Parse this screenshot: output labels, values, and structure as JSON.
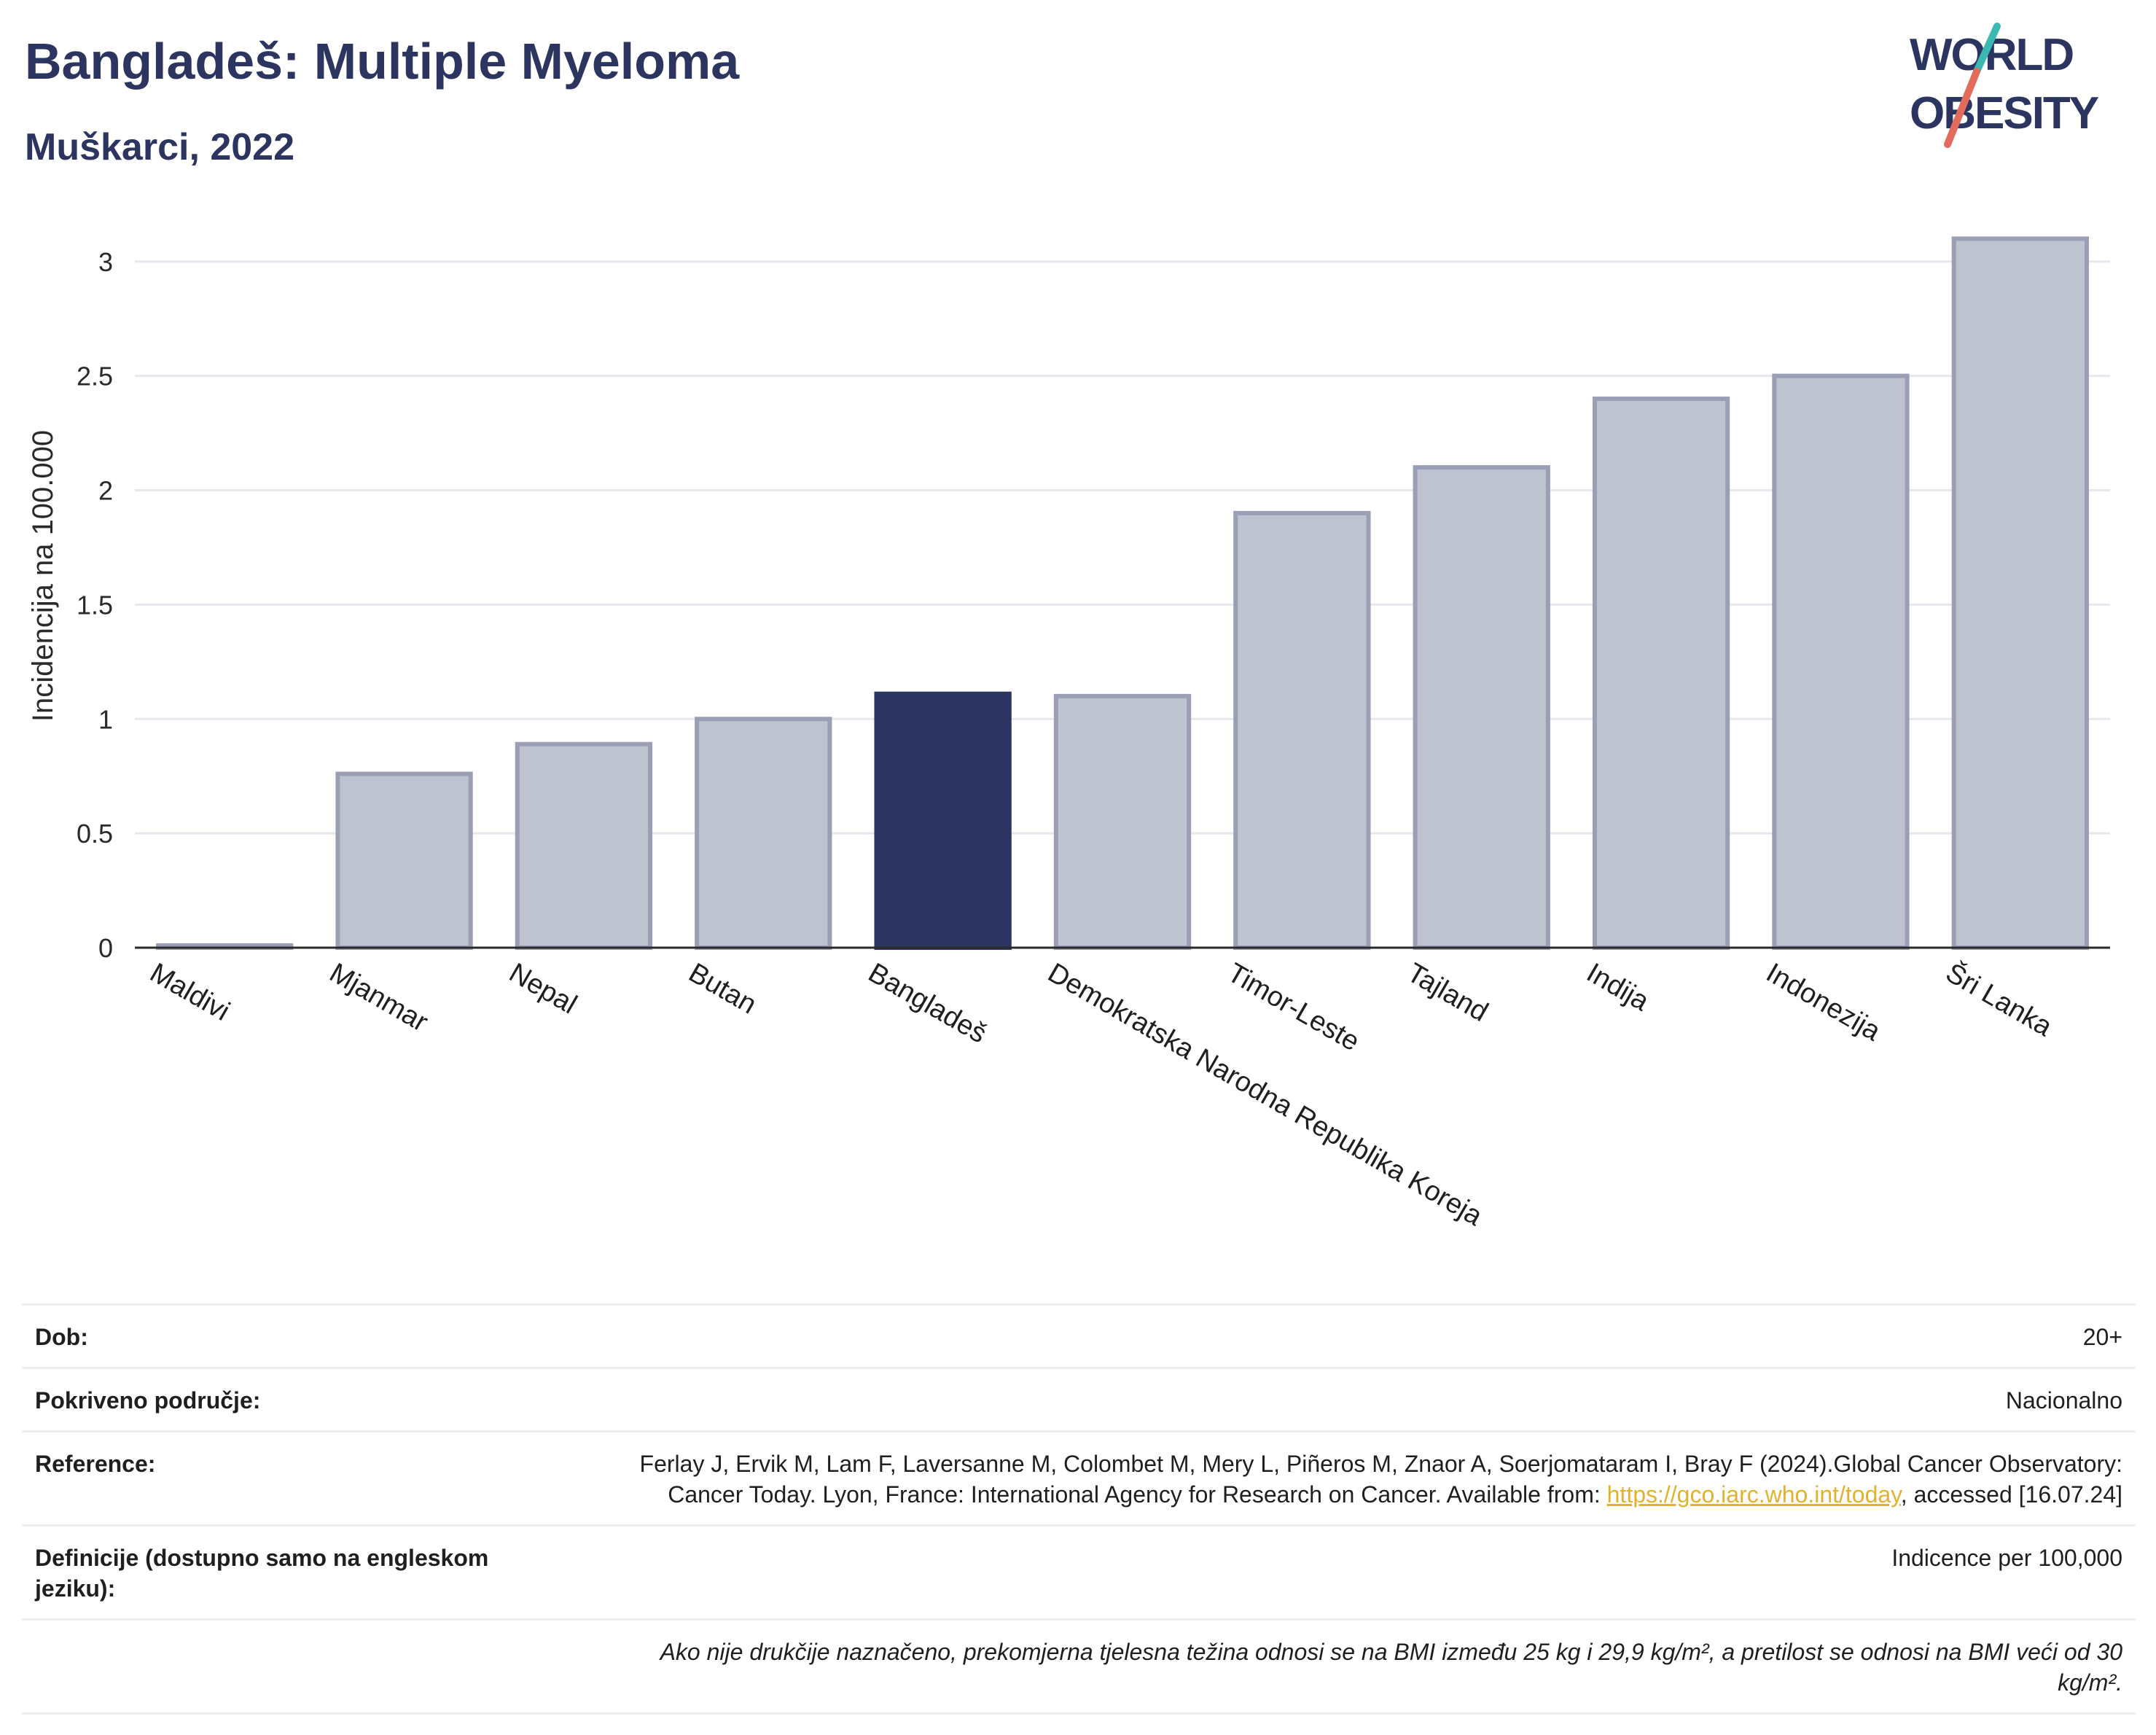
{
  "header": {
    "title": "Bangladeš: Multiple Myeloma",
    "subtitle": "Muškarci, 2022"
  },
  "logo": {
    "line1": "WORLD",
    "line2": "OBESITY",
    "colors": {
      "text": "#2b3560",
      "accent_teal": "#3bb8b1",
      "accent_coral": "#e36b5b"
    }
  },
  "chart_data": {
    "type": "bar",
    "title": "Bangladeš: Multiple Myeloma",
    "subtitle": "Muškarci, 2022",
    "ylabel": "Incidencija na 100.000",
    "xlabel": "",
    "ylim": [
      0,
      3.2
    ],
    "yticks": [
      0,
      0.5,
      1,
      1.5,
      2,
      2.5,
      3
    ],
    "ytick_labels": [
      "0",
      "0.5",
      "1",
      "1.5",
      "2",
      "2.5",
      "3"
    ],
    "grid": true,
    "categories": [
      "Maldivi",
      "Mjanmar",
      "Nepal",
      "Butan",
      "Bangladeš",
      "Demokratska Narodna Republika Koreja",
      "Timor-Leste",
      "Tajland",
      "Indija",
      "Indonezija",
      "Šri Lanka"
    ],
    "values": [
      0.0,
      0.76,
      0.89,
      1.0,
      1.11,
      1.1,
      1.9,
      2.1,
      2.4,
      2.5,
      3.1
    ],
    "highlight": "Bangladeš",
    "colors": {
      "highlight": "#2b3560",
      "default_fill": "#bfc2cf",
      "default_stroke": "#9a9fb5"
    }
  },
  "meta": {
    "age_label": "Dob:",
    "age_value": "20+",
    "coverage_label": "Pokriveno područje:",
    "coverage_value": "Nacionalno",
    "reference_label": "Reference:",
    "reference_text": "Ferlay J, Ervik M, Lam F, Laversanne M, Colombet M, Mery L, Piñeros M, Znaor A, Soerjomataram I, Bray F (2024).Global Cancer Observatory: Cancer Today. Lyon, France: International Agency for Research on Cancer. Available from: ",
    "reference_link": "https://gco.iarc.who.int/today",
    "reference_suffix": ", accessed [16.07.24]",
    "definitions_label": "Definicije (dostupno samo na engleskom jeziku):",
    "definitions_value": "Indicence per 100,000",
    "note": "Ako nije drukčije naznačeno, prekomjerna tjelesna težina odnosi se na BMI između 25 kg i 29,9 kg/m², a pretilost se odnosi na BMI veći od 30 kg/m²."
  }
}
